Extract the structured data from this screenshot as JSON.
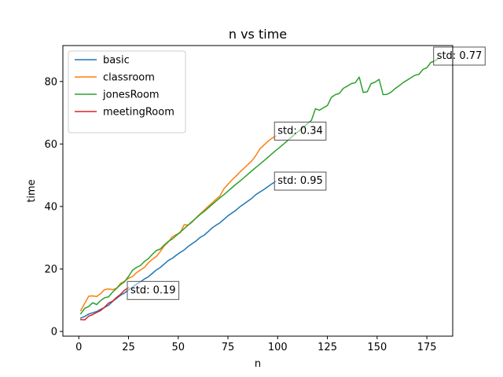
{
  "chart_data": {
    "type": "line",
    "title": "n vs time",
    "xlabel": "n",
    "ylabel": "time",
    "xlim": [
      -8,
      188
    ],
    "ylim": [
      -1.5,
      91.5
    ],
    "xticks": [
      0,
      25,
      50,
      75,
      100,
      125,
      150,
      175
    ],
    "yticks": [
      0,
      20,
      40,
      60,
      80
    ],
    "grid": false,
    "legend_position": "top-left",
    "colors": {
      "basic": "#1f77b4",
      "classroom": "#ff7f0e",
      "jonesRoom": "#2ca02c",
      "meetingRoom": "#d62728"
    },
    "series": [
      {
        "name": "basic",
        "x": [
          1,
          3,
          5,
          7,
          9,
          11,
          13,
          15,
          17,
          19,
          21,
          23,
          25,
          27,
          29,
          31,
          33,
          35,
          37,
          39,
          41,
          43,
          45,
          47,
          49,
          51,
          53,
          55,
          57,
          59,
          61,
          63,
          65,
          67,
          69,
          71,
          73,
          75,
          77,
          79,
          81,
          83,
          85,
          87,
          89,
          91,
          93,
          95,
          97,
          99
        ],
        "y": [
          4.3,
          4.8,
          5.6,
          6.0,
          6.4,
          7.1,
          7.7,
          8.4,
          9.6,
          10.6,
          11.6,
          12.3,
          13.3,
          14.2,
          15.1,
          15.9,
          16.8,
          17.5,
          18.6,
          19.7,
          20.5,
          21.6,
          22.7,
          23.4,
          24.4,
          25.3,
          26.1,
          27.2,
          28.1,
          29.0,
          30.1,
          30.8,
          31.9,
          33.1,
          34.0,
          34.8,
          35.9,
          37.0,
          37.9,
          38.8,
          39.9,
          40.8,
          41.7,
          42.6,
          43.8,
          44.6,
          45.4,
          46.3,
          47.2,
          48.0
        ],
        "annotation": "std: 0.95",
        "annotation_x": 98,
        "annotation_y": 48.5
      },
      {
        "name": "classroom",
        "x": [
          1,
          3,
          5,
          7,
          9,
          11,
          13,
          15,
          17,
          19,
          21,
          23,
          25,
          27,
          29,
          31,
          33,
          35,
          37,
          39,
          41,
          43,
          45,
          47,
          49,
          51,
          53,
          55,
          57,
          59,
          61,
          63,
          65,
          67,
          69,
          71,
          73,
          75,
          77,
          79,
          81,
          83,
          85,
          87,
          89,
          91,
          93,
          95,
          97,
          99
        ],
        "y": [
          6.7,
          9.0,
          11.3,
          11.4,
          11.2,
          12.1,
          13.4,
          13.6,
          13.4,
          13.8,
          15.4,
          16.1,
          17.0,
          17.6,
          18.8,
          19.7,
          20.5,
          22.0,
          23.1,
          24.0,
          25.6,
          27.4,
          28.6,
          30.3,
          31.0,
          31.6,
          34.2,
          34.0,
          35.0,
          36.4,
          37.6,
          38.8,
          40.0,
          41.1,
          42.3,
          43.4,
          45.7,
          47.1,
          48.5,
          49.7,
          51.0,
          52.2,
          53.4,
          54.6,
          56.3,
          58.4,
          59.6,
          60.8,
          61.8,
          62.5
        ],
        "annotation": "std: 0.34",
        "annotation_x": 98,
        "annotation_y": 64.5
      },
      {
        "name": "jonesRoom",
        "x": [
          1,
          3,
          5,
          7,
          9,
          11,
          13,
          15,
          17,
          19,
          21,
          23,
          25,
          27,
          29,
          31,
          33,
          35,
          37,
          39,
          41,
          43,
          45,
          47,
          49,
          51,
          53,
          55,
          57,
          59,
          61,
          63,
          65,
          67,
          69,
          71,
          73,
          75,
          77,
          79,
          81,
          83,
          85,
          87,
          89,
          91,
          93,
          95,
          97,
          99,
          101,
          103,
          105,
          107,
          109,
          111,
          113,
          115,
          117,
          119,
          121,
          123,
          125,
          127,
          129,
          131,
          133,
          135,
          137,
          139,
          141,
          143,
          145,
          147,
          149,
          151,
          153,
          155,
          157,
          159,
          161,
          163,
          165,
          167,
          169,
          171,
          173,
          175,
          177,
          179,
          181
        ],
        "y": [
          5.7,
          7.4,
          8.0,
          9.2,
          8.6,
          9.9,
          10.8,
          11.1,
          12.6,
          13.8,
          15.0,
          15.9,
          17.6,
          19.6,
          20.5,
          21.1,
          22.4,
          23.3,
          24.7,
          25.9,
          26.4,
          27.7,
          28.8,
          29.6,
          30.7,
          31.8,
          32.9,
          34.1,
          35.2,
          36.3,
          37.4,
          38.4,
          39.5,
          40.6,
          41.7,
          42.8,
          43.8,
          44.9,
          46.0,
          47.1,
          48.1,
          49.2,
          50.3,
          51.4,
          52.5,
          53.5,
          54.6,
          55.7,
          56.8,
          57.9,
          58.9,
          60.0,
          61.1,
          62.2,
          63.3,
          64.3,
          65.4,
          66.5,
          67.6,
          71.3,
          70.8,
          71.6,
          72.3,
          74.9,
          75.8,
          76.2,
          77.8,
          78.5,
          79.3,
          79.6,
          81.4,
          76.5,
          76.7,
          79.3,
          79.8,
          80.7,
          75.8,
          75.9,
          76.6,
          77.7,
          78.6,
          79.6,
          80.4,
          81.2,
          82.0,
          82.3,
          83.8,
          84.4,
          86.1,
          86.6,
          87.5
        ],
        "annotation": "std: 0.77",
        "annotation_x": 178,
        "annotation_y": 88.5
      },
      {
        "name": "meetingRoom",
        "x": [
          1,
          3,
          5,
          7,
          9,
          11,
          13,
          15,
          17,
          19,
          21,
          23,
          25
        ],
        "y": [
          3.8,
          3.7,
          4.9,
          5.4,
          6.1,
          6.7,
          7.8,
          9.1,
          9.7,
          10.9,
          11.9,
          13.2,
          14.0
        ],
        "annotation": "std: 0.19",
        "annotation_x": 24,
        "annotation_y": 13.5
      }
    ]
  }
}
